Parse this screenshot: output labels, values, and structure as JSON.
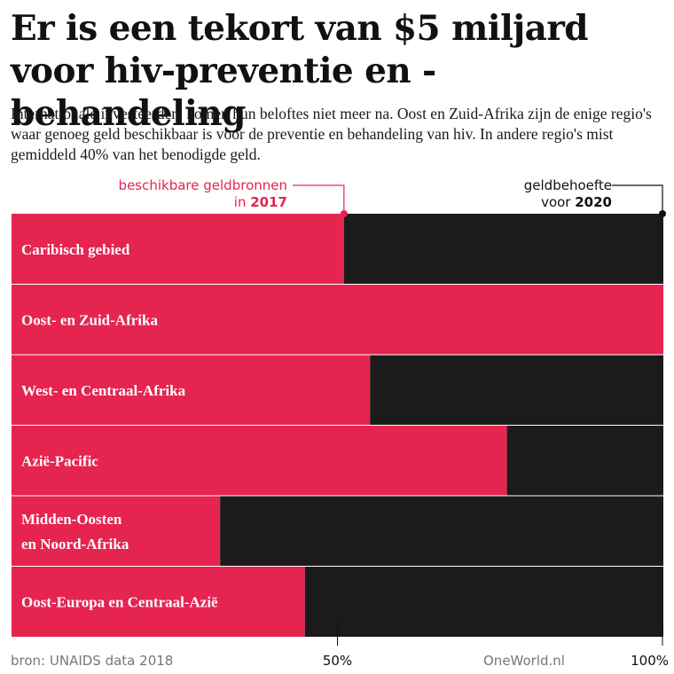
{
  "title": "Er is een tekort van $5 miljard voor hiv-preventie en -behandeling",
  "subtitle": "Internationale investeerders komen hun beloftes niet meer na. Oost en Zuid-Afrika zijn de enige regio's waar genoeg geld beschikbaar is voor de preventie en behandeling van hiv. In andere regio's mist gemiddeld 40% van het benodigde geld.",
  "annotations": {
    "available_line1": "beschikbare geldbronnen",
    "available_line2_prefix": "in ",
    "available_year": "2017",
    "need_line1": "geldbehoefte",
    "need_line2_prefix": "voor ",
    "need_year": "2020"
  },
  "footer": {
    "source": "bron: UNAIDS data 2018",
    "brand": "OneWorld.nl"
  },
  "colors": {
    "available": "#e5244f",
    "need": "#1b1b1b"
  },
  "chart_data": {
    "type": "bar",
    "orientation": "horizontal",
    "stacked": true,
    "x_unit": "%",
    "xlim": [
      0,
      100
    ],
    "ticks": [
      {
        "value": 50,
        "label": "50%"
      },
      {
        "value": 100,
        "label": "100%"
      }
    ],
    "series": [
      {
        "name": "beschikbare geldbronnen in 2017",
        "values": [
          51,
          100,
          55,
          76,
          32,
          45
        ]
      },
      {
        "name": "geldbehoefte voor 2020",
        "values": [
          49,
          0,
          45,
          24,
          68,
          55
        ]
      }
    ],
    "categories": [
      [
        "Caribisch gebied"
      ],
      [
        "Oost- en Zuid-Afrika"
      ],
      [
        "West- en Centraal-Afrika"
      ],
      [
        "Azië-Pacific"
      ],
      [
        "Midden-Oosten",
        "en Noord-Afrika"
      ],
      [
        "Oost-Europa en Centraal-Azië"
      ]
    ]
  }
}
